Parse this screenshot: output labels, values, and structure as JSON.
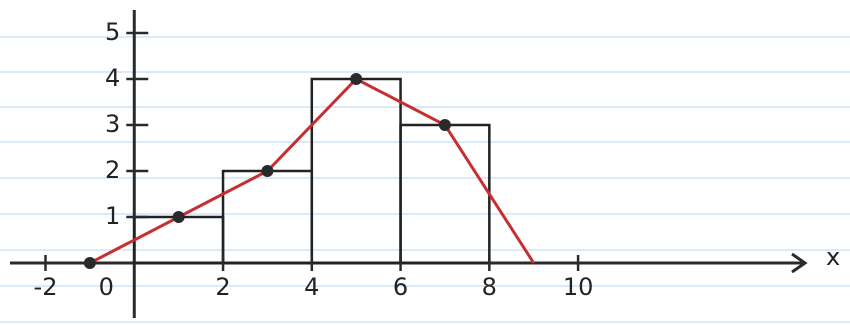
{
  "chart_data": {
    "type": "histogram",
    "bins": [
      0,
      2,
      4,
      6,
      8
    ],
    "counts": [
      1,
      2,
      4,
      3
    ],
    "color": "#222222",
    "series": [
      {
        "color": "#c62f2f",
        "x": [
          -1,
          1,
          3,
          5,
          7,
          9
        ],
        "values": [
          0,
          1,
          2,
          4,
          3,
          0
        ]
      }
    ],
    "xlabel": "x",
    "xlim": [
      -2.8,
      15
    ],
    "xticks": [
      -2,
      0,
      2,
      4,
      6,
      8,
      10
    ],
    "ylim": [
      0,
      5.5
    ],
    "yticks": [
      1,
      2,
      3,
      4,
      5
    ]
  }
}
